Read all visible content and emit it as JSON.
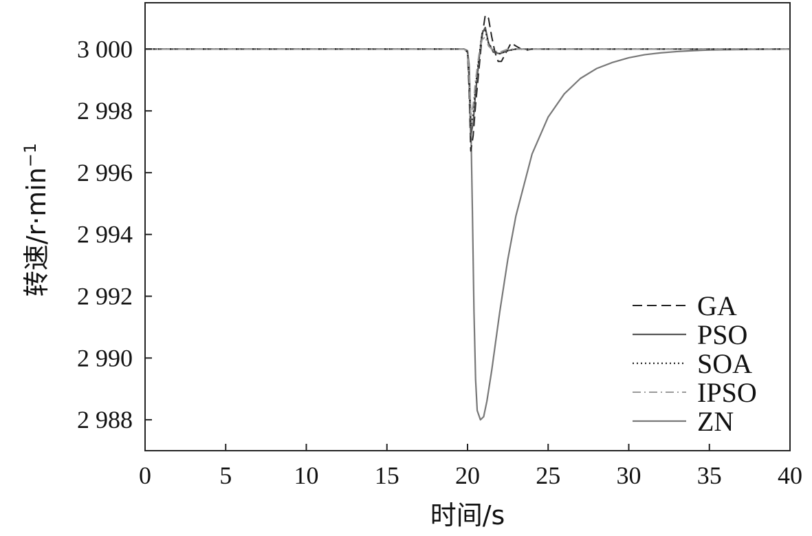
{
  "chart_data": {
    "type": "line",
    "xlabel": "时间/s",
    "ylabel": "转速/r·min",
    "ylabel_sup": "−1",
    "xlim": [
      0,
      40
    ],
    "ylim": [
      2987,
      3001.5
    ],
    "x_ticks": [
      0,
      5,
      10,
      15,
      20,
      25,
      30,
      35,
      40
    ],
    "x_tick_labels": [
      "0",
      "5",
      "10",
      "15",
      "20",
      "25",
      "30",
      "35",
      "40"
    ],
    "y_ticks": [
      2988,
      2990,
      2992,
      2994,
      2996,
      2998,
      3000
    ],
    "y_tick_labels": [
      "2 988",
      "2 990",
      "2 992",
      "2 994",
      "2 996",
      "2 998",
      "3 000"
    ],
    "grid": false,
    "legend_position": "bottom-right",
    "series": [
      {
        "name": "GA",
        "style": "dashed",
        "color": "#222222",
        "x": [
          0,
          19.8,
          20.0,
          20.1,
          20.2,
          20.35,
          20.5,
          20.7,
          20.9,
          21.1,
          21.3,
          21.5,
          21.7,
          21.9,
          22.1,
          22.4,
          22.7,
          23.0,
          23.5,
          24.0,
          25,
          30,
          40
        ],
        "y": [
          3000,
          3000,
          2999.9,
          2998.6,
          2996.7,
          2997.2,
          2998.2,
          2999.3,
          3000.4,
          3001.1,
          3001.0,
          3000.4,
          2999.9,
          2999.6,
          2999.6,
          2999.9,
          3000.2,
          3000.1,
          2999.95,
          3000.0,
          3000.0,
          3000.0,
          3000.0
        ]
      },
      {
        "name": "PSO",
        "style": "solid",
        "color": "#555555",
        "x": [
          0,
          19.8,
          20.0,
          20.1,
          20.2,
          20.35,
          20.5,
          20.7,
          20.9,
          21.1,
          21.3,
          21.6,
          22.0,
          22.5,
          23.0,
          24.0,
          40
        ],
        "y": [
          3000,
          3000,
          2999.9,
          2999.0,
          2997.2,
          2997.6,
          2998.6,
          2999.6,
          3000.5,
          3000.7,
          3000.2,
          2999.9,
          2999.85,
          2999.95,
          3000.0,
          3000.0,
          3000.0
        ]
      },
      {
        "name": "SOA",
        "style": "dotted",
        "color": "#222222",
        "x": [
          0,
          19.8,
          20.0,
          20.1,
          20.2,
          20.35,
          20.5,
          20.7,
          20.9,
          21.1,
          21.3,
          21.6,
          22.0,
          22.5,
          23.0,
          24.0,
          40
        ],
        "y": [
          3000,
          3000,
          2999.9,
          2999.1,
          2997.5,
          2997.9,
          2998.8,
          2999.7,
          3000.5,
          3000.6,
          3000.2,
          2999.95,
          2999.85,
          2999.95,
          3000.0,
          3000.0,
          3000.0
        ]
      },
      {
        "name": "IPSO",
        "style": "dashdot",
        "color": "#999999",
        "x": [
          0,
          19.8,
          20.0,
          20.1,
          20.2,
          20.35,
          20.5,
          20.7,
          20.9,
          21.1,
          21.3,
          21.6,
          22.0,
          22.5,
          23.0,
          24.0,
          40
        ],
        "y": [
          3000,
          3000,
          2999.9,
          2999.2,
          2997.8,
          2998.2,
          2999.0,
          2999.8,
          3000.3,
          3000.4,
          3000.1,
          2999.95,
          2999.9,
          3000.0,
          3000.0,
          3000.0,
          3000.0
        ]
      },
      {
        "name": "ZN",
        "style": "solid",
        "color": "#777777",
        "x": [
          0,
          19.8,
          20.0,
          20.1,
          20.2,
          20.3,
          20.4,
          20.5,
          20.6,
          20.8,
          21.0,
          21.2,
          21.5,
          22.0,
          22.5,
          23.0,
          24.0,
          25.0,
          26.0,
          27.0,
          28.0,
          29.0,
          30.0,
          31.0,
          32.0,
          33.0,
          34.0,
          35.0,
          36.0,
          38.0,
          40.0
        ],
        "y": [
          3000,
          3000,
          2999.95,
          2999.5,
          2997.8,
          2994.8,
          2991.5,
          2989.3,
          2988.3,
          2988.0,
          2988.1,
          2988.6,
          2989.6,
          2991.5,
          2993.2,
          2994.6,
          2996.6,
          2997.8,
          2998.55,
          2999.05,
          2999.37,
          2999.57,
          2999.72,
          2999.82,
          2999.88,
          2999.92,
          2999.95,
          2999.97,
          2999.98,
          2999.99,
          3000.0
        ]
      }
    ]
  }
}
